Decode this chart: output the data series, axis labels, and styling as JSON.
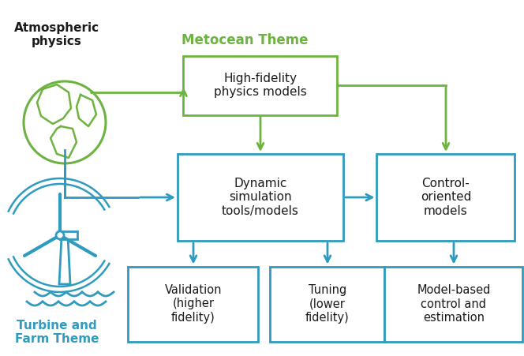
{
  "bg_color": "#ffffff",
  "green_color": "#6db33f",
  "blue_color": "#2e9bbf",
  "text_color": "#1a1a1a",
  "metocean_label": "Metocean Theme",
  "atm_label": "Atmospheric\nphysics",
  "turbine_label": "Turbine and\nFarm Theme",
  "box1_label": "High-fidelity\nphysics models",
  "box2_label": "Dynamic\nsimulation\ntools/models",
  "box3_label": "Control-\noriented\nmodels",
  "box4_label": "Validation\n(higher\nfidelity)",
  "box5_label": "Tuning\n(lower\nfidelity)",
  "box6_label": "Model-based\ncontrol and\nestimation",
  "figsize": [
    6.64,
    4.51
  ],
  "dpi": 100
}
